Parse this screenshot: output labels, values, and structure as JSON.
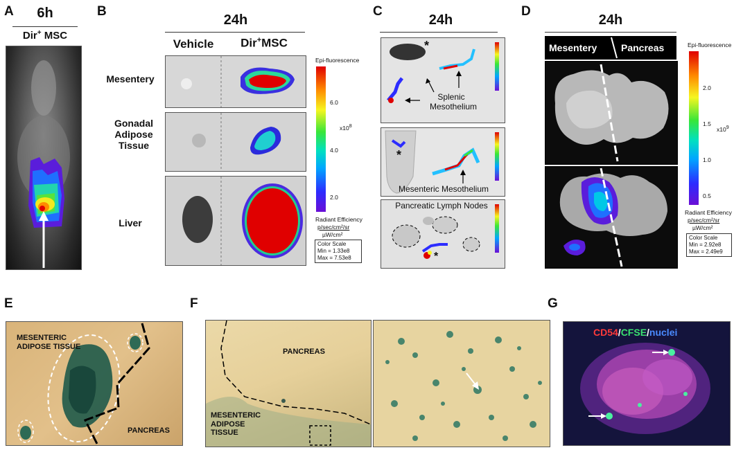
{
  "panelA": {
    "letter": "A",
    "time": "6h",
    "label": "Dir",
    "sup": "+",
    "label2": " MSC"
  },
  "panelB": {
    "letter": "B",
    "time": "24h",
    "col1": "Vehicle",
    "col2": "Dir",
    "col2sup": "+",
    "col2b": "MSC",
    "rows": [
      "Mesentery",
      "Gonadal Adipose Tissue",
      "Liver"
    ],
    "cbar_title": "Epi-fluorescence",
    "ticks": [
      "6.0",
      "4.0",
      "2.0"
    ],
    "exp": "x10",
    "exp_sup": "8",
    "units1": "Radiant Efficiency",
    "units2": "p/sec/cm²/sr",
    "units3": "µW/cm²",
    "cs_title": "Color Scale",
    "cs_min": "Min = 1.33e8",
    "cs_max": "Max = 7.53e8"
  },
  "panelC": {
    "letter": "C",
    "time": "24h",
    "label1": "Splenic Mesothelium",
    "label2": "Mesenteric Mesothelium",
    "label3": "Pancreatic Lymph Nodes",
    "asterisk": "*"
  },
  "panelD": {
    "letter": "D",
    "time": "24h",
    "left": "Mesentery",
    "right": "Pancreas",
    "cbar_title": "Epi-fluorescence",
    "ticks": [
      "2.0",
      "1.5",
      "1.0",
      "0.5"
    ],
    "exp": "x10",
    "exp_sup": "9",
    "units1": "Radiant Efficiency",
    "units2": "p/sec/cm²/sr",
    "units3": "µW/cm²",
    "cs_title": "Color Scale",
    "cs_min": "Min = 2.92e8",
    "cs_max": "Max = 2.49e9"
  },
  "panelE": {
    "letter": "E",
    "label1": "MESENTERIC ADIPOSE TISSUE",
    "label2": "PANCREAS"
  },
  "panelF": {
    "letter": "F",
    "label1": "PANCREAS",
    "label2": "MESENTERIC ADIPOSE TISSUE"
  },
  "panelG": {
    "letter": "G",
    "cd54": "CD54",
    "slash1": "/",
    "cfse": "CFSE",
    "slash2": "/",
    "nuclei": "nuclei"
  },
  "colors": {
    "tan": "#d9b87a",
    "stain": "#1f5a4a",
    "red": "#e00000"
  }
}
